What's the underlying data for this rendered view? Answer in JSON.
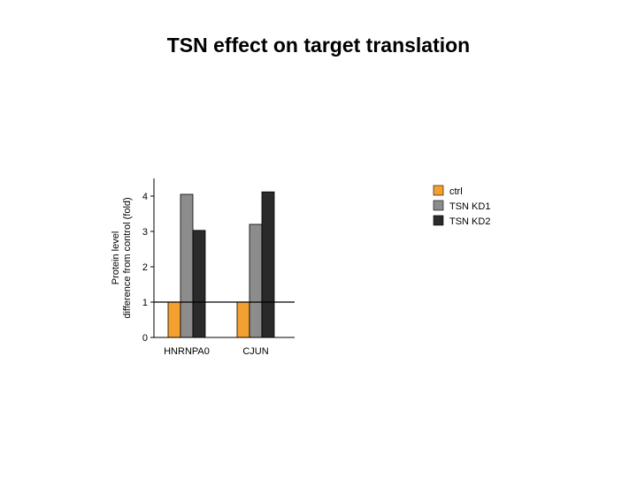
{
  "title": "TSN effect on target translation",
  "chart_data": {
    "type": "bar",
    "ylabel_lines": [
      "Protein level",
      "difference from control (fold)"
    ],
    "categories": [
      "HNRNPA0",
      "CJUN"
    ],
    "series": [
      {
        "name": "ctrl",
        "values": [
          1,
          1
        ],
        "color": "#f4a030"
      },
      {
        "name": "TSN KD1",
        "values": [
          4.05,
          3.2
        ],
        "color": "#8c8c8c"
      },
      {
        "name": "TSN KD2",
        "values": [
          3.03,
          4.12
        ],
        "color": "#2a2a2a"
      }
    ],
    "yticks": [
      0,
      1,
      2,
      3,
      4
    ],
    "ylim": [
      0,
      4.5
    ],
    "reference_line": 1,
    "legend_position": "right",
    "grid": false
  }
}
